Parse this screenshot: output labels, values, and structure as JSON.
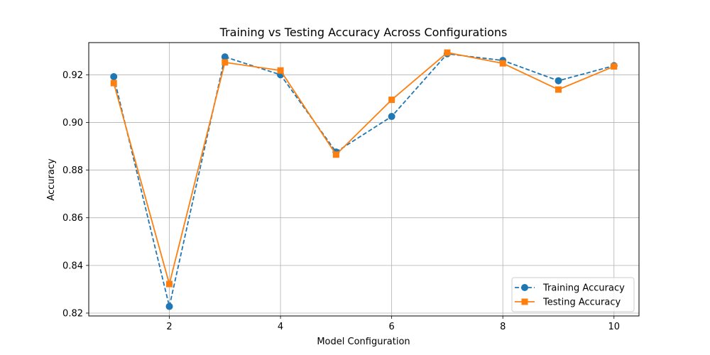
{
  "chart_data": {
    "type": "line",
    "title": "Training vs Testing Accuracy Across Configurations",
    "xlabel": "Model Configuration",
    "ylabel": "Accuracy",
    "x": [
      1,
      2,
      3,
      4,
      5,
      6,
      7,
      8,
      9,
      10
    ],
    "xlim": [
      0.55,
      10.45
    ],
    "ylim": [
      0.8188,
      0.9335
    ],
    "xticks": [
      2,
      4,
      6,
      8,
      10
    ],
    "xtick_labels": [
      "2",
      "4",
      "6",
      "8",
      "10"
    ],
    "yticks": [
      0.82,
      0.84,
      0.86,
      0.88,
      0.9,
      0.92
    ],
    "ytick_labels": [
      "0.82",
      "0.84",
      "0.86",
      "0.88",
      "0.90",
      "0.92"
    ],
    "grid": true,
    "legend_position": "lower-right",
    "series": [
      {
        "name": "Training Accuracy",
        "color": "#1f77b4",
        "line_style": "dashed",
        "marker": "circle",
        "values": [
          0.9192,
          0.8228,
          0.9275,
          0.92,
          0.8876,
          0.9025,
          0.9288,
          0.926,
          0.9175,
          0.9238
        ]
      },
      {
        "name": "Testing Accuracy",
        "color": "#ff7f0e",
        "line_style": "solid",
        "marker": "square",
        "values": [
          0.9165,
          0.8322,
          0.9252,
          0.9218,
          0.8865,
          0.9095,
          0.9293,
          0.9248,
          0.9138,
          0.9235
        ]
      }
    ]
  }
}
